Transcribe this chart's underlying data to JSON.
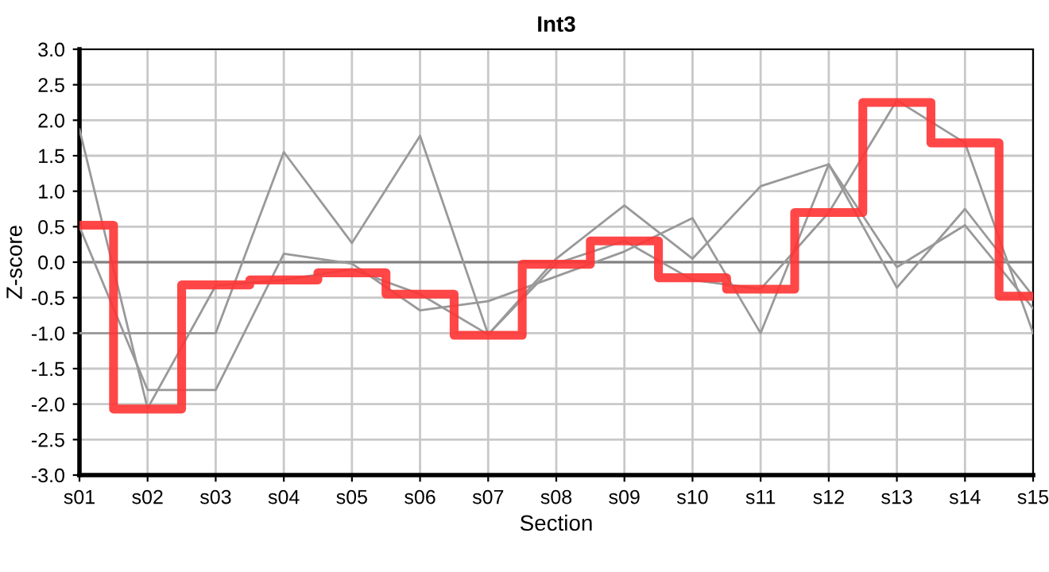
{
  "chart_data": {
    "type": "line",
    "title": "Int3",
    "xlabel": "Section",
    "ylabel": "Z-score",
    "categories": [
      "s01",
      "s02",
      "s03",
      "s04",
      "s05",
      "s06",
      "s07",
      "s08",
      "s09",
      "s10",
      "s11",
      "s12",
      "s13",
      "s14",
      "s15"
    ],
    "series": [
      {
        "color": "#999999",
        "values": [
          1.87,
          -2.06,
          -0.33,
          -0.25,
          -0.1,
          -0.45,
          -1.02,
          -0.02,
          0.3,
          -0.25,
          -0.38,
          0.7,
          2.28,
          1.68,
          -1.0
        ]
      },
      {
        "color": "#999999",
        "values": [
          0.5,
          -1.8,
          -1.8,
          0.12,
          -0.02,
          -0.68,
          -0.55,
          -0.2,
          0.15,
          0.62,
          -1.0,
          1.38,
          -0.07,
          0.52,
          -0.65
        ]
      },
      {
        "color": "#999999",
        "values": [
          -1.0,
          -1.0,
          -1.0,
          1.55,
          0.27,
          1.78,
          -1.02,
          0.05,
          0.8,
          0.05,
          1.07,
          1.38,
          -0.36,
          0.75,
          -0.48
        ]
      },
      {
        "type": "step",
        "color": "#ff3333",
        "values": [
          0.52,
          -2.07,
          -0.32,
          -0.25,
          -0.15,
          -0.45,
          -1.03,
          -0.03,
          0.3,
          -0.22,
          -0.38,
          0.7,
          2.25,
          1.68,
          -0.48
        ]
      }
    ],
    "ylim": [
      -3.0,
      3.0
    ],
    "yticks": [
      {
        "value": -3.0,
        "label": "-3.0"
      },
      {
        "value": -2.5,
        "label": "-2.5"
      },
      {
        "value": -2.0,
        "label": "-2.0"
      },
      {
        "value": -1.5,
        "label": "-1.5"
      },
      {
        "value": -1.0,
        "label": "-1.0"
      },
      {
        "value": -0.5,
        "label": "-0.5"
      },
      {
        "value": 0,
        "label": "0.0"
      },
      {
        "value": 0.5,
        "label": "0.5"
      },
      {
        "value": 1.0,
        "label": "1.0"
      },
      {
        "value": 1.5,
        "label": "1.5"
      },
      {
        "value": 2.0,
        "label": "2.0"
      },
      {
        "value": 2.5,
        "label": "2.5"
      },
      {
        "value": 3.0,
        "label": "3.0"
      }
    ],
    "ref_lines": [
      {
        "axis": "y",
        "value": 0,
        "color": "#808080"
      }
    ],
    "grid": true,
    "legend": false
  }
}
